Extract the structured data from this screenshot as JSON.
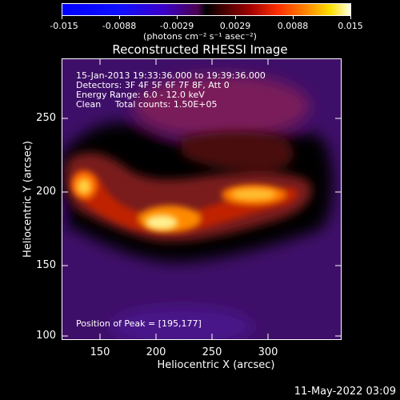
{
  "colorbar": {
    "ticks": [
      "-0.015",
      "-0.0088",
      "-0.0029",
      "0.0029",
      "0.0088",
      "0.015"
    ],
    "units": "(photons cm⁻² s⁻¹ asec⁻²)",
    "colors": [
      "#0000ff",
      "#4a0050",
      "#000000",
      "#a00000",
      "#ff8a00",
      "#ffffe0"
    ]
  },
  "title": "Reconstructed RHESSI Image",
  "info": {
    "time": "15-Jan-2013 19:33:36.000 to 19:39:36.000",
    "detectors": "Detectors: 3F 4F 5F 6F 7F 8F, Att 0",
    "energy": "Energy Range: 6.0 - 12.0 keV",
    "clean": "Clean     Total counts: 1.50E+05",
    "peak": "Position of Peak = [195,177]"
  },
  "axes": {
    "xlabel": "Heliocentric X (arcsec)",
    "ylabel": "Heliocentric Y (arcsec)",
    "xticks": [
      "150",
      "200",
      "250",
      "300"
    ],
    "yticks": [
      "250",
      "200",
      "150",
      "100"
    ]
  },
  "footer": "11-May-2022 03:09"
}
